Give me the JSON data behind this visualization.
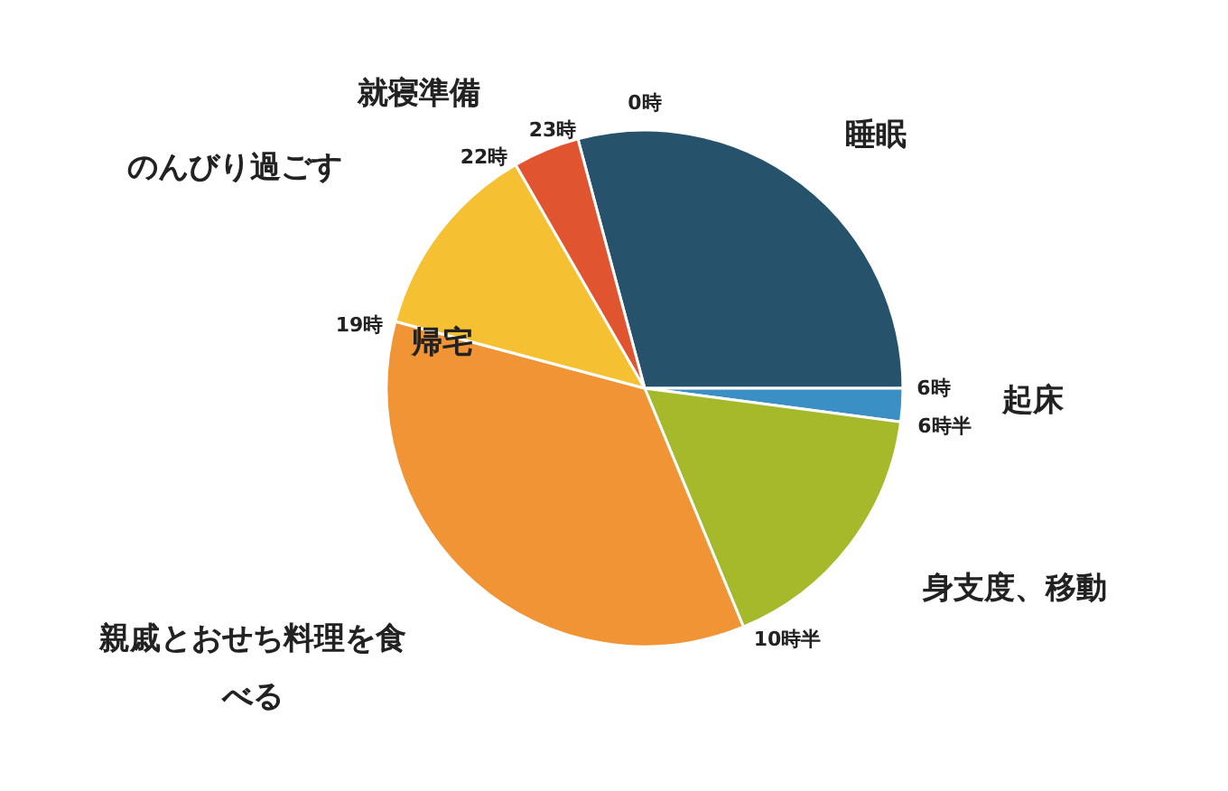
{
  "chart_data": {
    "type": "pie",
    "categories": [
      "睡眠",
      "起床",
      "身支度、移動",
      "親戚とおせち料理を食べる",
      "のんびり過ごす",
      "就寝準備"
    ],
    "values": [
      29.17,
      2.08,
      16.67,
      35.41,
      12.5,
      4.17
    ],
    "colors": [
      "#26536b",
      "#3a8fc4",
      "#a6b92a",
      "#f09436",
      "#f5c132",
      "#e05530"
    ],
    "annotations": [
      "0時",
      "23時",
      "22時",
      "19時",
      "帰宅",
      "6時",
      "6時半",
      "10時半"
    ],
    "legend": false
  }
}
